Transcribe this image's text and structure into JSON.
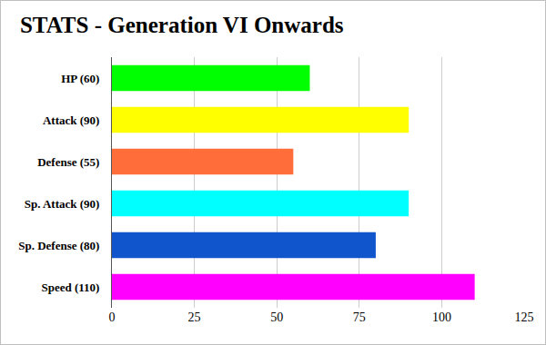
{
  "chart_data": {
    "type": "bar",
    "orientation": "horizontal",
    "title": "STATS - Generation VI Onwards",
    "categories": [
      "HP (60)",
      "Attack (90)",
      "Defense (55)",
      "Sp. Attack (90)",
      "Sp. Defense (80)",
      "Speed (110)"
    ],
    "values": [
      60,
      90,
      55,
      90,
      80,
      110
    ],
    "colors": [
      "#00ff00",
      "#ffff00",
      "#ff6d3a",
      "#00ffff",
      "#1155cc",
      "#ff00ff"
    ],
    "xlim": [
      0,
      125
    ],
    "xticks": [
      0,
      25,
      50,
      75,
      100,
      125
    ],
    "grid": true
  }
}
